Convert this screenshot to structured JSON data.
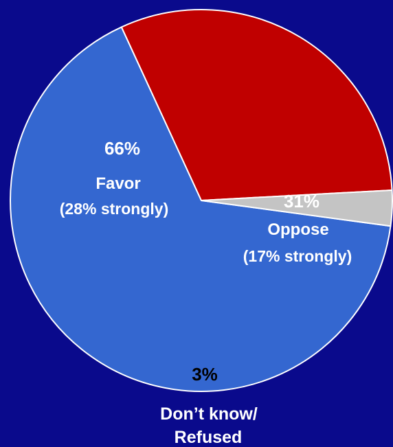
{
  "chart_data": {
    "type": "pie",
    "background_color": "#0a0a8c",
    "edge_color": "#ffffff",
    "slices": [
      {
        "value": 66,
        "color": "#3467d0",
        "percent_label": "66%",
        "name": "Favor",
        "sublabel": "(28% strongly)"
      },
      {
        "value": 31,
        "color": "#c00000",
        "percent_label": "31%",
        "name": "Oppose",
        "sublabel": "(17% strongly)"
      },
      {
        "value": 3,
        "color": "#c4c4c4",
        "percent_label": "3%",
        "name": "Don’t know/",
        "sublabel": "Refused"
      }
    ]
  }
}
